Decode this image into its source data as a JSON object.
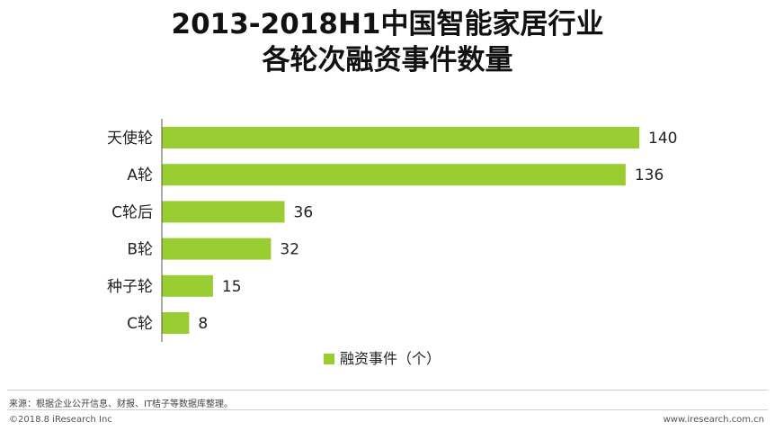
{
  "chart_data": {
    "type": "bar",
    "orientation": "horizontal",
    "title_lines": [
      "2013-2018H1中国智能家居行业",
      "各轮次融资事件数量"
    ],
    "categories": [
      "天使轮",
      "A轮",
      "C轮后",
      "B轮",
      "种子轮",
      "C轮"
    ],
    "series": [
      {
        "name": "融资事件（个）",
        "values": [
          140,
          136,
          36,
          32,
          15,
          8
        ]
      }
    ],
    "xlim": [
      0,
      145
    ],
    "grid": false,
    "legend_position": "bottom-center",
    "colors": {
      "bar": "#9ACD32",
      "axis": "#555555"
    }
  },
  "footer": {
    "source": "来源：根据企业公开信息、财报、IT桔子等数据库整理。",
    "copyright": "©2018.8 iResearch Inc",
    "website": "www.iresearch.com.cn"
  }
}
